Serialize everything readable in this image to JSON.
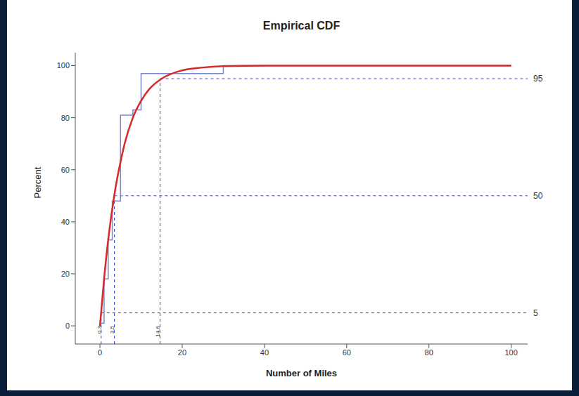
{
  "chart_data": {
    "type": "line",
    "title": "Empirical CDF",
    "x_label": "Number of Miles",
    "y_label": "Percent",
    "xlim": [
      -6,
      104
    ],
    "ylim": [
      -7,
      105
    ],
    "xticks": [
      0,
      20,
      40,
      60,
      80,
      100
    ],
    "yticks": [
      0,
      20,
      40,
      60,
      80,
      100
    ],
    "grid": false,
    "series": [
      {
        "color": "#7b86d0",
        "line_style": "step",
        "x": [
          0,
          1,
          2,
          3,
          5,
          8,
          10,
          30,
          100
        ],
        "values": [
          1,
          18,
          33,
          48,
          81,
          83,
          97,
          100,
          100
        ]
      },
      {
        "color": "#d42a2a",
        "line_style": "solid",
        "x": [
          0,
          1,
          2,
          3,
          4,
          5,
          6,
          8,
          10,
          12,
          15,
          20,
          25,
          30,
          40,
          60,
          80,
          100
        ],
        "values": [
          0,
          18,
          33,
          45,
          55,
          63,
          70,
          80,
          86.5,
          91,
          95,
          98.2,
          99.3,
          99.8,
          100,
          100,
          100,
          100
        ]
      }
    ],
    "reference_lines": {
      "color": "#3b45d6",
      "line_style": "dashed",
      "items": [
        {
          "level": 5,
          "x": 0.3
        },
        {
          "level": 50,
          "x": 3.5
        },
        {
          "level": 95,
          "x": 14.6
        }
      ]
    }
  }
}
